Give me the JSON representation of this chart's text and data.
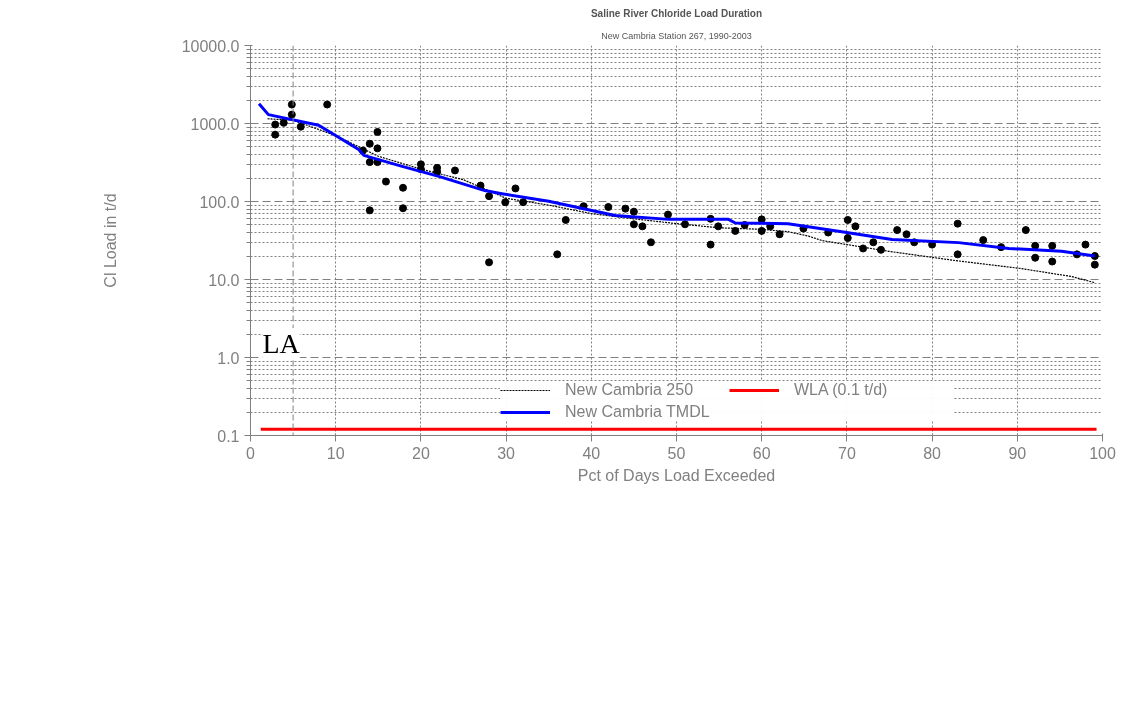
{
  "chart_data": {
    "type": "line",
    "title": "Saline River Chloride Load Duration",
    "subtitle": "New Cambria Station 267, 1990-2003",
    "xlabel": "Pct of Days Load Exceeded",
    "ylabel": "Cl Load in t/d",
    "log": "y",
    "grid": true,
    "legend": "bottom",
    "xlim": [
      0,
      100
    ],
    "xticks": [
      0,
      10,
      20,
      30,
      40,
      50,
      60,
      70,
      80,
      90,
      100
    ],
    "ylim": [
      0.1,
      10000
    ],
    "yticks": [
      {
        "value": 0.1,
        "label": "0.1"
      },
      {
        "value": 1,
        "label": "1.0"
      },
      {
        "value": 10,
        "label": "10.0"
      },
      {
        "value": 100,
        "label": "100.0"
      },
      {
        "value": 1000,
        "label": "1000.0"
      },
      {
        "value": 10000,
        "label": "10000.0"
      }
    ],
    "ref_lines": [
      {
        "axis": "x",
        "value": 5,
        "label": null,
        "color": "#808080",
        "line_style": "dashed"
      }
    ],
    "annotations": [
      "LA"
    ],
    "series": [
      {
        "type": "scatter",
        "marker": "circle",
        "color": "#000000",
        "x": [
          2.9,
          2.9,
          3.9,
          4.85,
          4.85,
          5.9,
          9.0,
          13.2,
          14.0,
          14.9,
          14.9,
          14.0,
          14.9,
          14.0,
          15.9,
          17.9,
          17.9,
          20.0,
          20.0,
          21.9,
          21.9,
          24.0,
          27.0,
          28.0,
          28.0,
          29.9,
          31.1,
          32.0,
          36.0,
          37.0,
          39.1,
          42.0,
          44.0,
          45.0,
          45.0,
          46.0,
          47.0,
          49.0,
          51.0,
          54.0,
          54.0,
          54.9,
          56.9,
          58.0,
          60.0,
          60.0,
          61.0,
          62.1,
          64.9,
          67.8,
          70.1,
          71.0,
          70.1,
          71.9,
          73.1,
          74.0,
          75.9,
          77.0,
          77.9,
          80.0,
          83.0,
          83.0,
          86.0,
          88.1,
          91.0,
          92.1,
          92.1,
          94.1,
          94.1,
          97.0,
          98.0,
          99.1,
          99.1
        ],
        "values": [
          970,
          720,
          1020,
          1750,
          1300,
          910,
          1750,
          450,
          550,
          780,
          480,
          320,
          320,
          77,
          180,
          150,
          82,
          300,
          260,
          270,
          240,
          250,
          160,
          117,
          16.6,
          98,
          147,
          98,
          21,
          58,
          87,
          85,
          81,
          74,
          51,
          48,
          30,
          68,
          51,
          60,
          28,
          48,
          42,
          50,
          59,
          42,
          48,
          38,
          45,
          40,
          58,
          48,
          34,
          25,
          30,
          24,
          43,
          38,
          30,
          28,
          52,
          21,
          32,
          26,
          43,
          27,
          19,
          27,
          17,
          21,
          28,
          20,
          15.5
        ]
      },
      {
        "name": "New Cambria 250",
        "line_style": "dotted",
        "color": "#000000",
        "x": [
          2,
          5,
          10,
          15,
          20,
          25,
          30,
          35,
          40,
          45,
          50,
          55,
          60,
          63.1,
          65.5,
          67.1,
          74.9,
          82.7,
          90.5,
          96.4,
          99.1
        ],
        "values": [
          1150,
          1100,
          700,
          380,
          260,
          190,
          110,
          90,
          70,
          60,
          52,
          46,
          44,
          41,
          36,
          31.5,
          23,
          17.5,
          13.8,
          10.9,
          9.1
        ]
      },
      {
        "name": "New Cambria TMDL",
        "line_style": "solid",
        "color": "#0000ff",
        "x": [
          1.0,
          2.1,
          8.0,
          12.7,
          13.3,
          17.8,
          22.1,
          27.5,
          29.5,
          35.0,
          42.8,
          49.1,
          56.1,
          56.9,
          63.1,
          69.4,
          75.3,
          83.1,
          89.0,
          95.2,
          99.1
        ],
        "values": [
          1790,
          1300,
          950,
          465,
          390,
          282,
          210,
          138,
          126,
          101,
          66,
          59,
          59,
          53,
          52,
          41,
          32.6,
          29.7,
          25,
          23,
          20
        ]
      },
      {
        "name": "WLA (0.1 t/d)",
        "line_style": "solid",
        "color": "#ff0000",
        "x": [
          1.2,
          99.3
        ],
        "values": [
          0.12,
          0.12
        ]
      }
    ]
  }
}
